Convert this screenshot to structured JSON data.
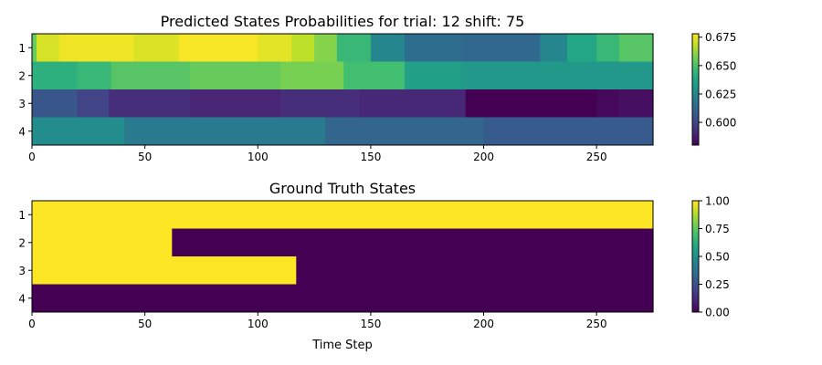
{
  "chart_data": [
    {
      "type": "heatmap",
      "title": "Predicted States Probabilities for trial: 12 shift: 75",
      "xlabel": "",
      "ylabel": "",
      "xlim": [
        0,
        275
      ],
      "x_ticks": [
        0,
        50,
        100,
        150,
        200,
        250
      ],
      "y_categories": [
        "1",
        "2",
        "3",
        "4"
      ],
      "colormap": "viridis",
      "color_range": [
        0.58,
        0.678
      ],
      "colorbar_ticks": [
        "0.675",
        "0.650",
        "0.625",
        "0.600"
      ],
      "rows": [
        {
          "label": "1",
          "segments": [
            {
              "from": 0,
              "to": 2,
              "value": 0.655
            },
            {
              "from": 2,
              "to": 12,
              "value": 0.672
            },
            {
              "from": 12,
              "to": 45,
              "value": 0.676
            },
            {
              "from": 45,
              "to": 65,
              "value": 0.673
            },
            {
              "from": 65,
              "to": 100,
              "value": 0.677
            },
            {
              "from": 100,
              "to": 115,
              "value": 0.674
            },
            {
              "from": 115,
              "to": 125,
              "value": 0.668
            },
            {
              "from": 125,
              "to": 135,
              "value": 0.66
            },
            {
              "from": 135,
              "to": 150,
              "value": 0.645
            },
            {
              "from": 150,
              "to": 165,
              "value": 0.625
            },
            {
              "from": 165,
              "to": 190,
              "value": 0.615
            },
            {
              "from": 190,
              "to": 225,
              "value": 0.613
            },
            {
              "from": 225,
              "to": 237,
              "value": 0.625
            },
            {
              "from": 237,
              "to": 250,
              "value": 0.638
            },
            {
              "from": 250,
              "to": 260,
              "value": 0.645
            },
            {
              "from": 260,
              "to": 275,
              "value": 0.652
            }
          ]
        },
        {
          "label": "2",
          "segments": [
            {
              "from": 0,
              "to": 20,
              "value": 0.642
            },
            {
              "from": 20,
              "to": 35,
              "value": 0.645
            },
            {
              "from": 35,
              "to": 70,
              "value": 0.652
            },
            {
              "from": 70,
              "to": 110,
              "value": 0.655
            },
            {
              "from": 110,
              "to": 138,
              "value": 0.658
            },
            {
              "from": 138,
              "to": 165,
              "value": 0.648
            },
            {
              "from": 165,
              "to": 190,
              "value": 0.635
            },
            {
              "from": 190,
              "to": 275,
              "value": 0.632
            }
          ]
        },
        {
          "label": "3",
          "segments": [
            {
              "from": 0,
              "to": 20,
              "value": 0.606
            },
            {
              "from": 20,
              "to": 34,
              "value": 0.6
            },
            {
              "from": 34,
              "to": 70,
              "value": 0.593
            },
            {
              "from": 70,
              "to": 110,
              "value": 0.59
            },
            {
              "from": 110,
              "to": 145,
              "value": 0.593
            },
            {
              "from": 145,
              "to": 192,
              "value": 0.591
            },
            {
              "from": 192,
              "to": 250,
              "value": 0.58
            },
            {
              "from": 250,
              "to": 260,
              "value": 0.582
            },
            {
              "from": 260,
              "to": 275,
              "value": 0.584
            }
          ]
        },
        {
          "label": "4",
          "segments": [
            {
              "from": 0,
              "to": 41,
              "value": 0.627
            },
            {
              "from": 41,
              "to": 130,
              "value": 0.62
            },
            {
              "from": 130,
              "to": 200,
              "value": 0.612
            },
            {
              "from": 200,
              "to": 275,
              "value": 0.608
            }
          ]
        }
      ]
    },
    {
      "type": "heatmap",
      "title": "Ground Truth States",
      "xlabel": "Time Step",
      "ylabel": "",
      "xlim": [
        0,
        275
      ],
      "x_ticks": [
        0,
        50,
        100,
        150,
        200,
        250
      ],
      "y_categories": [
        "1",
        "2",
        "3",
        "4"
      ],
      "colormap": "viridis",
      "color_range": [
        0,
        1
      ],
      "colorbar_ticks": [
        "1.00",
        "0.75",
        "0.50",
        "0.25",
        "0.00"
      ],
      "rows": [
        {
          "label": "1",
          "segments": [
            {
              "from": 0,
              "to": 275,
              "value": 1
            }
          ]
        },
        {
          "label": "2",
          "segments": [
            {
              "from": 0,
              "to": 62,
              "value": 1
            },
            {
              "from": 62,
              "to": 275,
              "value": 0
            }
          ]
        },
        {
          "label": "3",
          "segments": [
            {
              "from": 0,
              "to": 117,
              "value": 1
            },
            {
              "from": 117,
              "to": 275,
              "value": 0
            }
          ]
        },
        {
          "label": "4",
          "segments": [
            {
              "from": 0,
              "to": 275,
              "value": 0
            }
          ]
        }
      ]
    }
  ]
}
